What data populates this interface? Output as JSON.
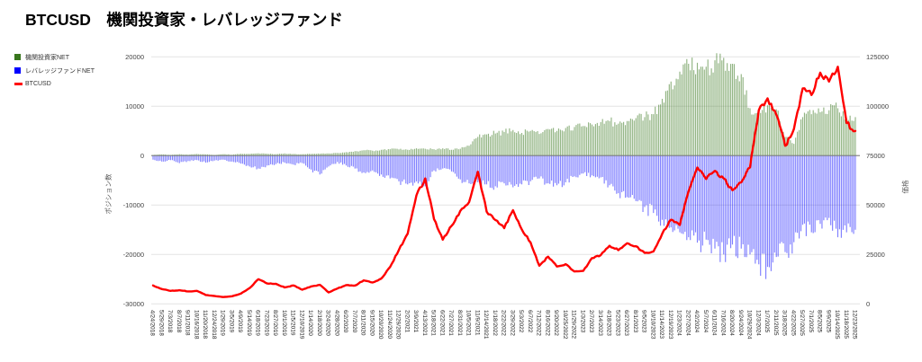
{
  "title": "BTCUSD　機関投資家・レバレッジファンド",
  "chart_data": {
    "type": "combo",
    "description": "Weekly CME futures net positions (bars, left axis) with BTCUSD price (line, right axis). Values sampled at each labeled 5-week tick.",
    "legend_position": "top-left",
    "grid": true,
    "x_tick_labels": [
      "4/24/2018",
      "5/29/2018",
      "7/3/2018",
      "8/7/2018",
      "9/11/2018",
      "10/16/2018",
      "11/20/2018",
      "12/24/2018",
      "1/29/2019",
      "3/5/2019",
      "4/9/2019",
      "5/14/2019",
      "6/18/2019",
      "7/23/2019",
      "8/27/2019",
      "10/1/2019",
      "11/5/2019",
      "12/10/2019",
      "1/14/2020",
      "2/18/2020",
      "3/24/2020",
      "4/28/2020",
      "6/2/2020",
      "7/7/2020",
      "8/11/2020",
      "9/15/2020",
      "10/20/2020",
      "11/24/2020",
      "12/29/2020",
      "2/2/2021",
      "3/9/2021",
      "4/13/2021",
      "5/18/2021",
      "6/22/2021",
      "7/27/2021",
      "8/31/2021",
      "10/5/2021",
      "11/9/2021",
      "12/14/2021",
      "1/18/2022",
      "2/22/2022",
      "3/29/2022",
      "5/3/2022",
      "6/7/2022",
      "7/12/2022",
      "8/16/2022",
      "9/20/2022",
      "10/25/2022",
      "11/29/2022",
      "1/3/2023",
      "2/7/2023",
      "3/14/2023",
      "4/18/2023",
      "5/23/2023",
      "6/27/2023",
      "8/1/2023",
      "9/5/2023",
      "10/10/2023",
      "11/14/2023",
      "12/19/2023",
      "1/23/2024",
      "2/27/2024",
      "4/2/2024",
      "5/7/2024",
      "6/11/2024",
      "7/16/2024",
      "8/20/2024",
      "9/24/2024",
      "10/29/2024",
      "12/3/2024",
      "1/7/2025",
      "2/11/2025",
      "3/18/2025",
      "4/22/2025",
      "5/27/2025",
      "7/1/2025",
      "8/5/2025",
      "9/9/2025",
      "10/14/2025",
      "11/18/2025",
      "12/23/2025"
    ],
    "left_axis": {
      "title": "ポジション数",
      "range": [
        -30000,
        20000
      ],
      "ticks": [
        20000,
        10000,
        0,
        -10000,
        -20000,
        -30000
      ]
    },
    "right_axis": {
      "title": "価格",
      "range": [
        0,
        125000
      ],
      "ticks": [
        125000,
        100000,
        75000,
        50000,
        25000,
        0
      ]
    },
    "series": [
      {
        "name": "機関投資家NET",
        "type": "bar",
        "axis": "left",
        "color": "#38761d",
        "values": [
          150,
          250,
          150,
          300,
          200,
          350,
          250,
          150,
          300,
          200,
          400,
          350,
          500,
          400,
          300,
          450,
          350,
          300,
          350,
          400,
          450,
          550,
          700,
          900,
          1100,
          1000,
          1200,
          1300,
          1250,
          1200,
          1500,
          1400,
          1300,
          1500,
          1200,
          1400,
          2000,
          3800,
          4300,
          4500,
          4800,
          5200,
          4600,
          5000,
          4400,
          5400,
          5000,
          5600,
          5800,
          6000,
          6300,
          6800,
          7000,
          6500,
          7000,
          7600,
          7800,
          8400,
          11500,
          15000,
          17000,
          18600,
          18800,
          18000,
          19300,
          19800,
          18600,
          16500,
          9600,
          9200,
          10200,
          9400,
          3800,
          2400,
          7800,
          8400,
          8800,
          9200,
          9600,
          7600,
          7800
        ]
      },
      {
        "name": "レバレッジファンドNET",
        "type": "bar",
        "axis": "left",
        "color": "#0000ff",
        "values": [
          -800,
          -1200,
          -900,
          -1500,
          -1100,
          -900,
          -1400,
          -1000,
          -800,
          -1200,
          -1600,
          -2200,
          -2600,
          -2000,
          -1700,
          -1400,
          -1800,
          -1500,
          -2800,
          -3800,
          -2200,
          -1300,
          -2000,
          -2600,
          -3400,
          -3000,
          -3800,
          -4600,
          -5200,
          -5800,
          -5200,
          -6200,
          -3000,
          -2600,
          -3200,
          -4800,
          -5600,
          -5400,
          -5800,
          -6200,
          -5600,
          -6400,
          -5800,
          -5200,
          -4600,
          -5600,
          -6000,
          -5400,
          -4200,
          -3600,
          -4000,
          -4400,
          -6000,
          -7600,
          -8400,
          -9200,
          -10400,
          -11600,
          -13000,
          -14500,
          -15500,
          -16500,
          -17600,
          -17000,
          -18800,
          -20000,
          -18000,
          -18800,
          -20000,
          -22000,
          -22500,
          -20500,
          -19500,
          -17500,
          -14000,
          -15500,
          -13800,
          -12600,
          -16500,
          -15500,
          -15000
        ]
      },
      {
        "name": "BTCUSD",
        "type": "line",
        "axis": "right",
        "color": "#ff0000",
        "values": [
          9300,
          7500,
          6600,
          6900,
          6300,
          6600,
          4500,
          4000,
          3450,
          3870,
          5200,
          8000,
          12500,
          10300,
          10150,
          8300,
          9300,
          7200,
          8800,
          9650,
          5800,
          7780,
          9500,
          9250,
          11900,
          10800,
          12800,
          18700,
          27300,
          35500,
          54900,
          63500,
          42900,
          32500,
          39500,
          47100,
          51500,
          66900,
          46700,
          42400,
          38300,
          47400,
          37700,
          31100,
          19300,
          23900,
          18900,
          20100,
          16400,
          16700,
          23200,
          24700,
          29400,
          27200,
          30700,
          29200,
          25800,
          26500,
          35500,
          42600,
          39900,
          57000,
          69000,
          63200,
          67300,
          63500,
          57500,
          61500,
          69000,
          98000,
          104000,
          95700,
          80000,
          88500,
          109000,
          105700,
          117000,
          112500,
          120000,
          91500,
          87500
        ]
      }
    ]
  }
}
